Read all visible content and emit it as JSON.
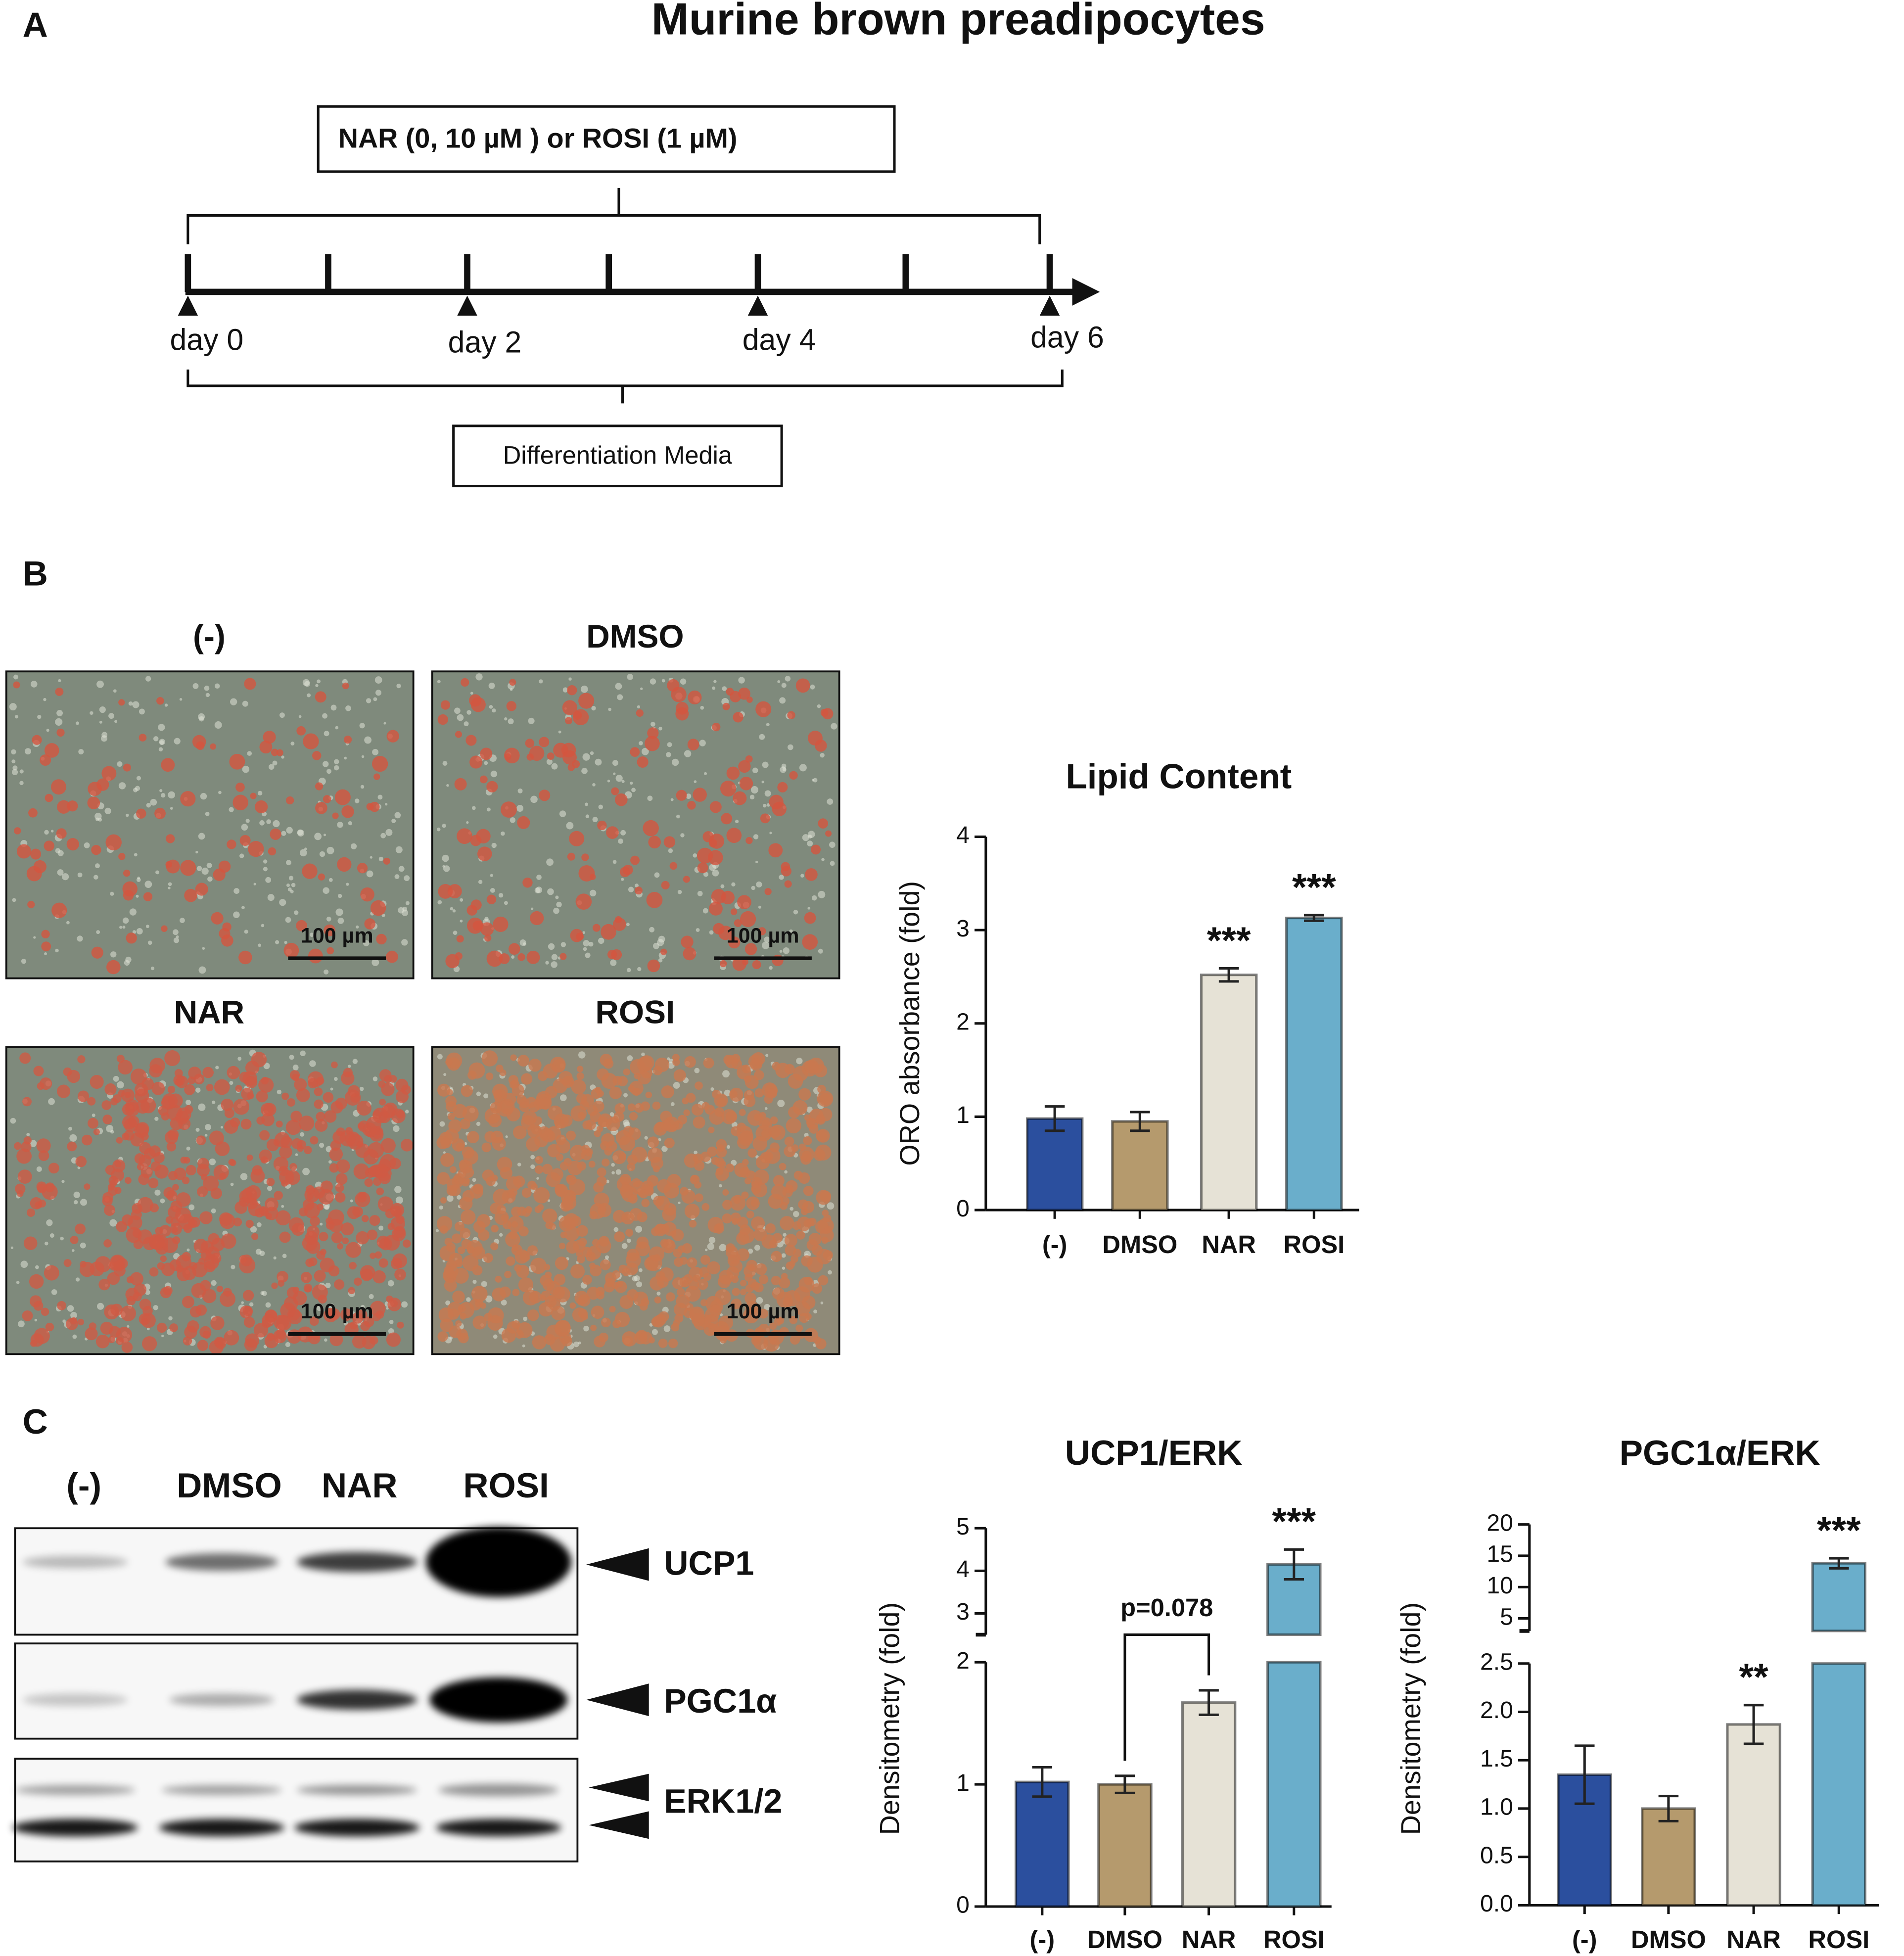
{
  "panel_labels": [
    "A",
    "B",
    "C"
  ],
  "title": "Murine brown preadipocytes",
  "timeline": {
    "treatment": "NAR (0, 10 µM ) or ROSI (1 µM)",
    "days": [
      "day 0",
      "day 2",
      "day 4",
      "day 6"
    ],
    "media": "Differentiation Media"
  },
  "micrographs": {
    "labels": [
      "(-)",
      "DMSO",
      "NAR",
      "ROSI"
    ],
    "scale_bar": "100 µm"
  },
  "blot": {
    "lanes": [
      "(-)",
      "DMSO",
      "NAR",
      "ROSI"
    ],
    "bands": [
      "UCP1",
      "PGC1α",
      "ERK1/2"
    ]
  },
  "chart_data": [
    {
      "type": "bar",
      "title": "Lipid Content",
      "ylabel": "ORO absorbance (fold)",
      "categories": [
        "(-)",
        "DMSO",
        "NAR",
        "ROSI"
      ],
      "values": [
        0.98,
        0.95,
        2.52,
        3.13
      ],
      "errors": [
        0.13,
        0.1,
        0.07,
        0.03
      ],
      "colors": [
        "#2b4f9e",
        "#b59a6d",
        "#e6e2d6",
        "#6aaecb"
      ],
      "significance": [
        null,
        null,
        "***",
        "***"
      ],
      "ylim": [
        0,
        4
      ],
      "yticks": [
        0,
        1,
        2,
        3,
        4
      ]
    },
    {
      "type": "bar",
      "title": "UCP1/ERK",
      "ylabel": "Densitometry (fold)",
      "categories": [
        "(-)",
        "DMSO",
        "NAR",
        "ROSI"
      ],
      "values": [
        1.02,
        1.0,
        1.67,
        4.15
      ],
      "errors": [
        0.12,
        0.07,
        0.1,
        0.35
      ],
      "colors": [
        "#2b4f9e",
        "#b59a6d",
        "#e6e2d6",
        "#6aaecb"
      ],
      "significance": [
        null,
        null,
        null,
        "***"
      ],
      "bracket": {
        "label": "p=0.078",
        "between": [
          "DMSO",
          "NAR"
        ]
      },
      "segments": [
        {
          "ylim": [
            0,
            2
          ],
          "yticks": [
            0,
            1,
            2
          ]
        },
        {
          "ylim": [
            2.5,
            5
          ],
          "yticks": [
            3,
            4,
            5
          ]
        }
      ]
    },
    {
      "type": "bar",
      "title": "PGC1α/ERK",
      "ylabel": "Densitometry (fold)",
      "categories": [
        "(-)",
        "DMSO",
        "NAR",
        "ROSI"
      ],
      "values": [
        1.35,
        1.0,
        1.87,
        13.8
      ],
      "errors": [
        0.3,
        0.13,
        0.2,
        0.8
      ],
      "colors": [
        "#2b4f9e",
        "#b59a6d",
        "#e6e2d6",
        "#6aaecb"
      ],
      "significance": [
        null,
        null,
        "**",
        "***"
      ],
      "segments": [
        {
          "ylim": [
            0,
            2.5
          ],
          "yticks": [
            {
              "value": 0,
              "label": "0.0"
            },
            0.5,
            {
              "value": 1,
              "label": "1.0"
            },
            1.5,
            {
              "value": 2,
              "label": "2.0"
            },
            2.5
          ]
        },
        {
          "ylim": [
            3,
            20
          ],
          "yticks": [
            5,
            10,
            15,
            20
          ]
        }
      ]
    }
  ]
}
